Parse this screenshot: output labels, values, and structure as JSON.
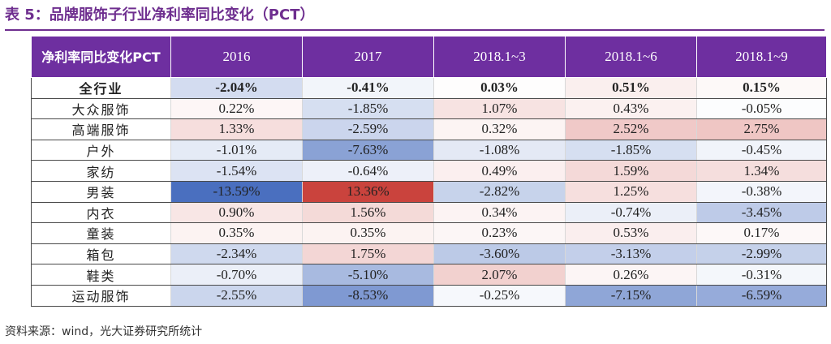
{
  "title": "表 5：品牌服饰子行业净利率同比变化（PCT）",
  "source": "资料来源：wind，光大证券研究所统计",
  "table": {
    "corner_label": "净利率同比变化PCT",
    "columns": [
      "2016",
      "2017",
      "2018.1~3",
      "2018.1~6",
      "2018.1~9"
    ],
    "rows": [
      {
        "label": "全行业",
        "bold": true,
        "values": [
          "-2.04%",
          "-0.41%",
          "0.03%",
          "0.51%",
          "0.15%"
        ]
      },
      {
        "label": "大众服饰",
        "values": [
          "0.22%",
          "-1.85%",
          "1.07%",
          "0.43%",
          "-0.05%"
        ]
      },
      {
        "label": "高端服饰",
        "values": [
          "1.33%",
          "-2.59%",
          "0.32%",
          "2.52%",
          "2.75%"
        ]
      },
      {
        "label": "户外",
        "values": [
          "-1.01%",
          "-7.63%",
          "-1.08%",
          "-1.85%",
          "-0.45%"
        ]
      },
      {
        "label": "家纺",
        "values": [
          "-1.54%",
          "-0.64%",
          "0.49%",
          "1.59%",
          "1.34%"
        ]
      },
      {
        "label": "男装",
        "values": [
          "-13.59%",
          "13.36%",
          "-2.82%",
          "1.25%",
          "-0.38%"
        ]
      },
      {
        "label": "内衣",
        "values": [
          "0.90%",
          "1.56%",
          "0.34%",
          "-0.74%",
          "-3.45%"
        ]
      },
      {
        "label": "童装",
        "values": [
          "0.35%",
          "0.35%",
          "0.23%",
          "0.53%",
          "0.17%"
        ]
      },
      {
        "label": "箱包",
        "values": [
          "-2.34%",
          "1.75%",
          "-3.60%",
          "-3.13%",
          "-2.99%"
        ]
      },
      {
        "label": "鞋类",
        "values": [
          "-0.70%",
          "-5.10%",
          "2.07%",
          "0.26%",
          "-0.31%"
        ]
      },
      {
        "label": "运动服饰",
        "values": [
          "-2.55%",
          "-8.53%",
          "-0.25%",
          "-7.15%",
          "-6.59%"
        ]
      }
    ]
  },
  "colors": {
    "header_bg": "#6e2fa0",
    "title_color": "#6e2e8f",
    "negative_scale_end": "#4a6fbf",
    "positive_scale_end": "#c9413b"
  }
}
